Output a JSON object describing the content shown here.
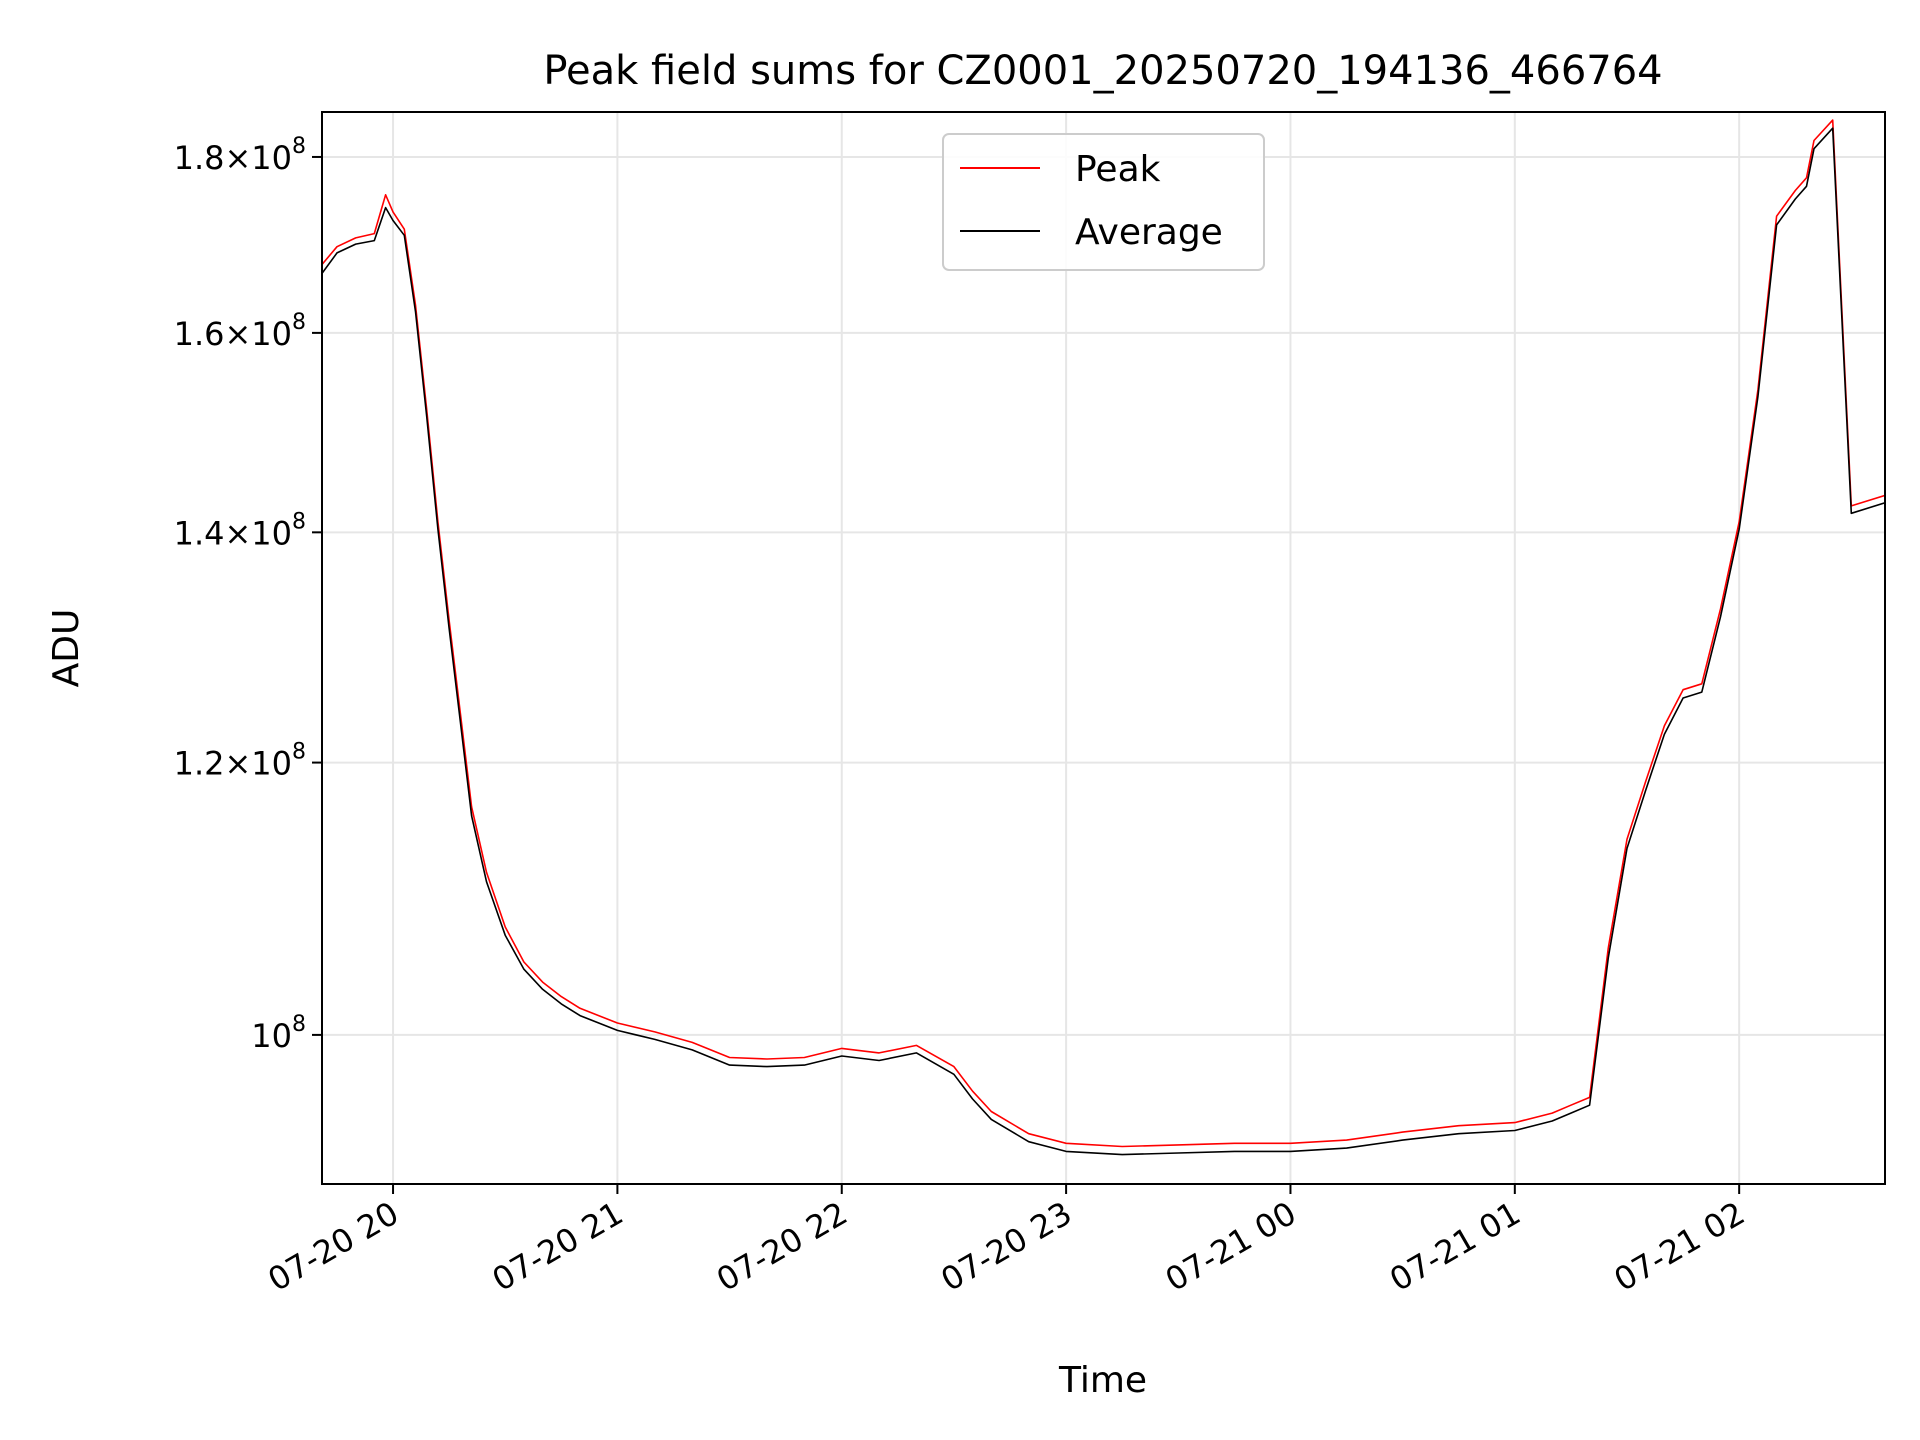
{
  "chart_data": {
    "type": "line",
    "title": "Peak field sums for CZ0001_20250720_194136_466764",
    "xlabel": "Time",
    "ylabel": "ADU",
    "y_scale": "log",
    "grid": true,
    "legend_position": "top-center",
    "xlim": [
      "2025-07-20 19:41",
      "2025-07-21 02:39"
    ],
    "ylim": [
      90500000,
      185500000
    ],
    "x_ticks": [
      {
        "value": "2025-07-20 20:00",
        "label": "07-20 20"
      },
      {
        "value": "2025-07-20 21:00",
        "label": "07-20 21"
      },
      {
        "value": "2025-07-20 22:00",
        "label": "07-20 22"
      },
      {
        "value": "2025-07-20 23:00",
        "label": "07-20 23"
      },
      {
        "value": "2025-07-21 00:00",
        "label": "07-21 00"
      },
      {
        "value": "2025-07-21 01:00",
        "label": "07-21 01"
      },
      {
        "value": "2025-07-21 02:00",
        "label": "07-21 02"
      }
    ],
    "y_ticks": [
      {
        "value": 100000000,
        "mantissa": "",
        "exponent": "8"
      },
      {
        "value": 120000000,
        "mantissa": "1.2",
        "exponent": "8"
      },
      {
        "value": 140000000,
        "mantissa": "1.4",
        "exponent": "8"
      },
      {
        "value": 160000000,
        "mantissa": "1.6",
        "exponent": "8"
      },
      {
        "value": 180000000,
        "mantissa": "1.8",
        "exponent": "8"
      }
    ],
    "series": [
      {
        "name": "Peak",
        "color": "#ff0000",
        "x": [
          "2025-07-20 19:41",
          "2025-07-20 19:45",
          "2025-07-20 19:50",
          "2025-07-20 19:55",
          "2025-07-20 19:58",
          "2025-07-20 20:00",
          "2025-07-20 20:03",
          "2025-07-20 20:06",
          "2025-07-20 20:09",
          "2025-07-20 20:12",
          "2025-07-20 20:15",
          "2025-07-20 20:18",
          "2025-07-20 20:21",
          "2025-07-20 20:25",
          "2025-07-20 20:30",
          "2025-07-20 20:35",
          "2025-07-20 20:40",
          "2025-07-20 20:45",
          "2025-07-20 20:50",
          "2025-07-20 21:00",
          "2025-07-20 21:10",
          "2025-07-20 21:20",
          "2025-07-20 21:30",
          "2025-07-20 21:40",
          "2025-07-20 21:50",
          "2025-07-20 22:00",
          "2025-07-20 22:10",
          "2025-07-20 22:20",
          "2025-07-20 22:30",
          "2025-07-20 22:35",
          "2025-07-20 22:40",
          "2025-07-20 22:50",
          "2025-07-20 23:00",
          "2025-07-20 23:15",
          "2025-07-20 23:30",
          "2025-07-20 23:45",
          "2025-07-21 00:00",
          "2025-07-21 00:15",
          "2025-07-21 00:30",
          "2025-07-21 00:45",
          "2025-07-21 01:00",
          "2025-07-21 01:10",
          "2025-07-21 01:15",
          "2025-07-21 01:20",
          "2025-07-21 01:25",
          "2025-07-21 01:30",
          "2025-07-21 01:35",
          "2025-07-21 01:40",
          "2025-07-21 01:45",
          "2025-07-21 01:50",
          "2025-07-21 01:55",
          "2025-07-21 02:00",
          "2025-07-21 02:05",
          "2025-07-21 02:10",
          "2025-07-21 02:15",
          "2025-07-21 02:18",
          "2025-07-21 02:20",
          "2025-07-21 02:25",
          "2025-07-21 02:30",
          "2025-07-21 02:39"
        ],
        "values": [
          167500000,
          169500000,
          170500000,
          171000000,
          175500000,
          173500000,
          171500000,
          163000000,
          152000000,
          141000000,
          132000000,
          124000000,
          116500000,
          111500000,
          107500000,
          105000000,
          103600000,
          102600000,
          101800000,
          100800000,
          100200000,
          99500000,
          98500000,
          98400000,
          98500000,
          99100000,
          98800000,
          99300000,
          97900000,
          96300000,
          95000000,
          93600000,
          93000000,
          92800000,
          92900000,
          93000000,
          93000000,
          93200000,
          93700000,
          94100000,
          94300000,
          94900000,
          95400000,
          95900000,
          106000000,
          114000000,
          118500000,
          123000000,
          126000000,
          126500000,
          133000000,
          141000000,
          154000000,
          173000000,
          176000000,
          177500000,
          182000000,
          184500000,
          142500000,
          143500000
        ]
      },
      {
        "name": "Average",
        "color": "#000000",
        "x": [
          "2025-07-20 19:41",
          "2025-07-20 19:45",
          "2025-07-20 19:50",
          "2025-07-20 19:55",
          "2025-07-20 19:58",
          "2025-07-20 20:00",
          "2025-07-20 20:03",
          "2025-07-20 20:06",
          "2025-07-20 20:09",
          "2025-07-20 20:12",
          "2025-07-20 20:15",
          "2025-07-20 20:18",
          "2025-07-20 20:21",
          "2025-07-20 20:25",
          "2025-07-20 20:30",
          "2025-07-20 20:35",
          "2025-07-20 20:40",
          "2025-07-20 20:45",
          "2025-07-20 20:50",
          "2025-07-20 21:00",
          "2025-07-20 21:10",
          "2025-07-20 21:20",
          "2025-07-20 21:30",
          "2025-07-20 21:40",
          "2025-07-20 21:50",
          "2025-07-20 22:00",
          "2025-07-20 22:10",
          "2025-07-20 22:20",
          "2025-07-20 22:30",
          "2025-07-20 22:35",
          "2025-07-20 22:40",
          "2025-07-20 22:50",
          "2025-07-20 23:00",
          "2025-07-20 23:15",
          "2025-07-20 23:30",
          "2025-07-20 23:45",
          "2025-07-21 00:00",
          "2025-07-21 00:15",
          "2025-07-21 00:30",
          "2025-07-21 00:45",
          "2025-07-21 01:00",
          "2025-07-21 01:10",
          "2025-07-21 01:15",
          "2025-07-21 01:20",
          "2025-07-21 01:25",
          "2025-07-21 01:30",
          "2025-07-21 01:35",
          "2025-07-21 01:40",
          "2025-07-21 01:45",
          "2025-07-21 01:50",
          "2025-07-21 01:55",
          "2025-07-21 02:00",
          "2025-07-21 02:05",
          "2025-07-21 02:10",
          "2025-07-21 02:15",
          "2025-07-21 02:18",
          "2025-07-21 02:20",
          "2025-07-21 02:25",
          "2025-07-21 02:30",
          "2025-07-21 02:39"
        ],
        "values": [
          166500000,
          168800000,
          169800000,
          170200000,
          174000000,
          172500000,
          170800000,
          162300000,
          151300000,
          140300000,
          131300000,
          123300000,
          115800000,
          110800000,
          106900000,
          104500000,
          103100000,
          102100000,
          101300000,
          100300000,
          99700000,
          99000000,
          98000000,
          97900000,
          98000000,
          98600000,
          98300000,
          98800000,
          97400000,
          95800000,
          94500000,
          93100000,
          92500000,
          92300000,
          92400000,
          92500000,
          92500000,
          92700000,
          93200000,
          93600000,
          93800000,
          94400000,
          94900000,
          95400000,
          105300000,
          113300000,
          117800000,
          122300000,
          125300000,
          125800000,
          132300000,
          140300000,
          153300000,
          172000000,
          175000000,
          176500000,
          181000000,
          183500000,
          141800000,
          142800000
        ]
      }
    ]
  }
}
